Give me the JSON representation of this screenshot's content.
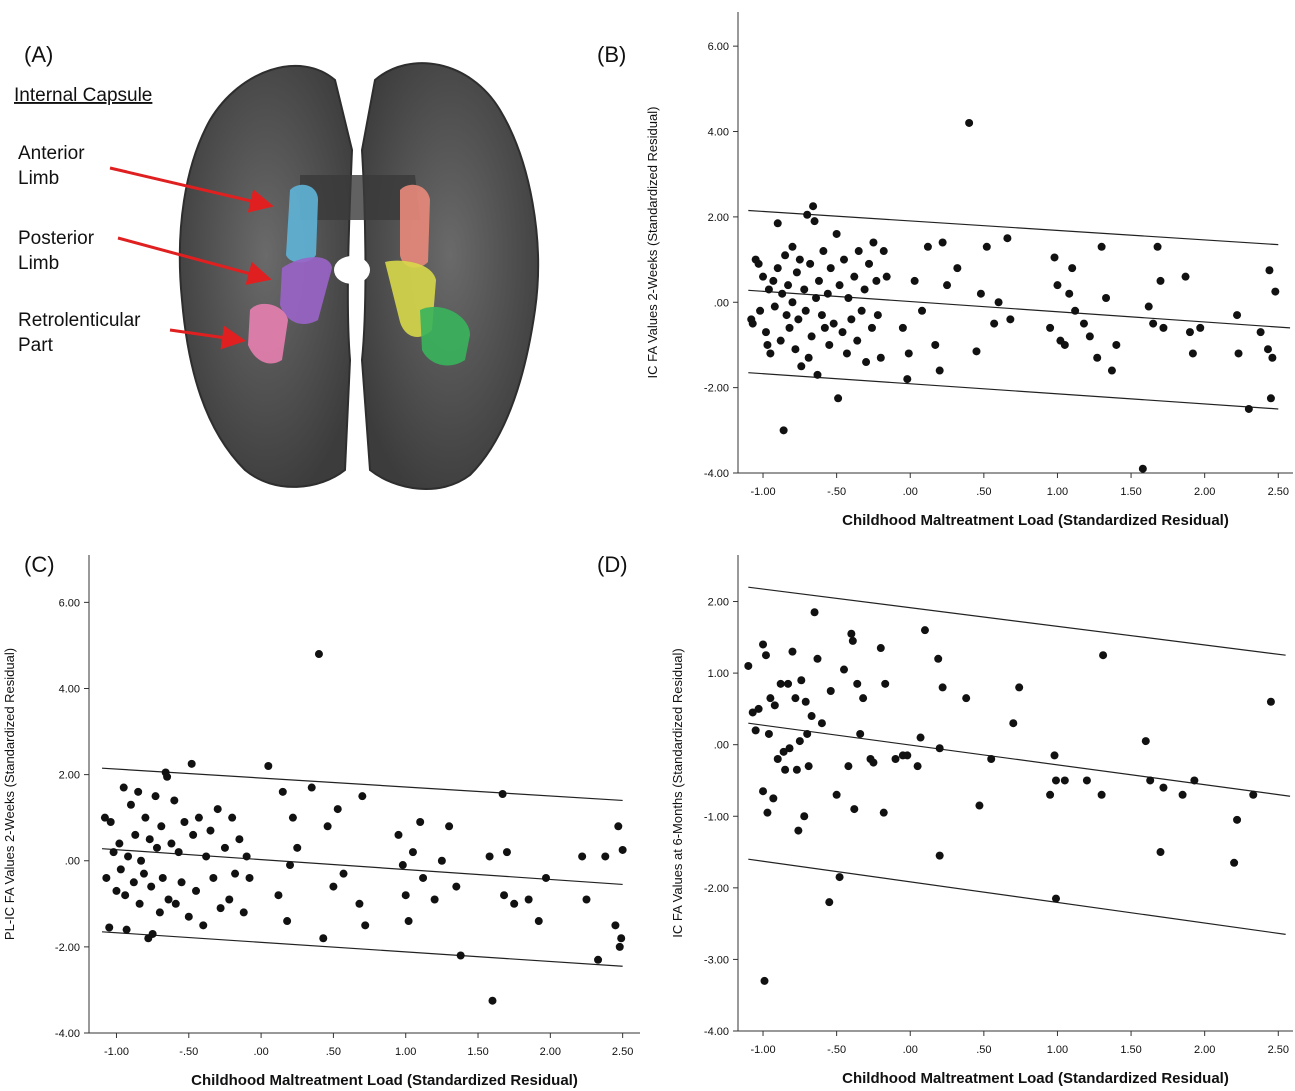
{
  "panel_a": {
    "label": "(A)",
    "heading": "Internal Capsule",
    "annotations": [
      [
        "Anterior",
        "Limb"
      ],
      [
        "Posterior",
        "Limb"
      ],
      [
        "Retrolenticular",
        "Part"
      ]
    ]
  },
  "chart_data": [
    {
      "type": "scatter",
      "panel_label": "(B)",
      "x_label": "Childhood Maltreatment Load (Standardized Residual)",
      "y_label": "IC FA Values 2-Weeks (Standardized Residual)",
      "color": "#111111",
      "xlim": [
        -1.17,
        2.6
      ],
      "ylim": [
        -4,
        6.8
      ],
      "xticks": [
        {
          "value": -1,
          "label": "-1.00"
        },
        {
          "value": -0.5,
          "label": "-.50"
        },
        {
          "value": 0,
          "label": ".00"
        },
        {
          "value": 0.5,
          "label": ".50"
        },
        {
          "value": 1,
          "label": "1.00"
        },
        {
          "value": 1.5,
          "label": "1.50"
        },
        {
          "value": 2,
          "label": "2.00"
        },
        {
          "value": 2.5,
          "label": "2.50"
        }
      ],
      "yticks": [
        {
          "value": 6,
          "label": "6.00"
        },
        {
          "value": 4,
          "label": "4.00"
        },
        {
          "value": 2,
          "label": "2.00"
        },
        {
          "value": 0,
          "label": ".00"
        },
        {
          "value": -2,
          "label": "-2.00"
        },
        {
          "value": -4,
          "label": "-4.00"
        }
      ],
      "fit_lines": [
        {
          "x": [
            -1.1,
            2.5
          ],
          "values": [
            2.15,
            1.35
          ]
        },
        {
          "x": [
            -1.1,
            2.58
          ],
          "values": [
            0.28,
            -0.6
          ]
        },
        {
          "x": [
            -1.1,
            2.5
          ],
          "values": [
            -1.65,
            -2.5
          ]
        }
      ],
      "x": [
        -1.08,
        -1.07,
        -1.05,
        -1.03,
        -1.02,
        -1.0,
        -0.98,
        -0.97,
        -0.96,
        -0.95,
        -0.93,
        -0.92,
        -0.9,
        -0.9,
        -0.88,
        -0.87,
        -0.86,
        -0.85,
        -0.84,
        -0.83,
        -0.82,
        -0.8,
        -0.8,
        -0.78,
        -0.77,
        -0.76,
        -0.75,
        -0.74,
        -0.72,
        -0.71,
        -0.7,
        -0.69,
        -0.68,
        -0.67,
        -0.66,
        -0.65,
        -0.64,
        -0.63,
        -0.62,
        -0.6,
        -0.59,
        -0.58,
        -0.56,
        -0.55,
        -0.54,
        -0.52,
        -0.5,
        -0.49,
        -0.48,
        -0.46,
        -0.45,
        -0.43,
        -0.42,
        -0.4,
        -0.38,
        -0.36,
        -0.35,
        -0.33,
        -0.31,
        -0.3,
        -0.28,
        -0.26,
        -0.25,
        -0.23,
        -0.22,
        -0.2,
        -0.18,
        -0.16,
        -0.05,
        -0.02,
        -0.01,
        0.03,
        0.08,
        0.12,
        0.17,
        0.2,
        0.22,
        0.25,
        0.32,
        0.4,
        0.45,
        0.48,
        0.52,
        0.57,
        0.6,
        0.66,
        0.68,
        0.95,
        0.98,
        1.0,
        1.02,
        1.05,
        1.08,
        1.1,
        1.12,
        1.18,
        1.22,
        1.27,
        1.3,
        1.33,
        1.37,
        1.4,
        1.58,
        1.62,
        1.65,
        1.68,
        1.7,
        1.72,
        1.87,
        1.9,
        1.92,
        1.97,
        2.22,
        2.23,
        2.3,
        2.38,
        2.43,
        2.44,
        2.45,
        2.46,
        2.48
      ],
      "values": [
        -0.4,
        -0.5,
        1.0,
        0.9,
        -0.2,
        0.6,
        -0.7,
        -1.0,
        0.3,
        -1.2,
        0.5,
        -0.1,
        1.85,
        0.8,
        -0.9,
        0.2,
        -3.0,
        1.1,
        -0.3,
        0.4,
        -0.6,
        1.3,
        0.0,
        -1.1,
        0.7,
        -0.4,
        1.0,
        -1.5,
        0.3,
        -0.2,
        2.05,
        -1.3,
        0.9,
        -0.8,
        2.25,
        1.9,
        0.1,
        -1.7,
        0.5,
        -0.3,
        1.2,
        -0.6,
        0.2,
        -1.0,
        0.8,
        -0.5,
        1.6,
        -2.25,
        0.4,
        -0.7,
        1.0,
        -1.2,
        0.1,
        -0.4,
        0.6,
        -0.9,
        1.2,
        -0.2,
        0.3,
        -1.4,
        0.9,
        -0.6,
        1.4,
        0.5,
        -0.3,
        -1.3,
        1.2,
        0.6,
        -0.6,
        -1.8,
        -1.2,
        0.5,
        -0.2,
        1.3,
        -1.0,
        -1.6,
        1.4,
        0.4,
        0.8,
        4.2,
        -1.15,
        0.2,
        1.3,
        -0.5,
        0.0,
        1.5,
        -0.4,
        -0.6,
        1.05,
        0.4,
        -0.9,
        -1.0,
        0.2,
        0.8,
        -0.2,
        -0.5,
        -0.8,
        -1.3,
        1.3,
        0.1,
        -1.6,
        -1.0,
        -3.9,
        -0.1,
        -0.5,
        1.3,
        0.5,
        -0.6,
        0.6,
        -0.7,
        -1.2,
        -0.6,
        -0.3,
        -1.2,
        -2.5,
        -0.7,
        -1.1,
        0.75,
        -2.25,
        -1.3,
        0.25
      ]
    },
    {
      "type": "scatter",
      "panel_label": "(C)",
      "x_label": "Childhood Maltreatment Load (Standardized Residual)",
      "y_label": "PL-IC FA Values 2-Weeks (Standardized Residual)",
      "color": "#111111",
      "xlim": [
        -1.19,
        2.62
      ],
      "ylim": [
        -4,
        7.1
      ],
      "xticks": [
        {
          "value": -1,
          "label": "-1.00"
        },
        {
          "value": -0.5,
          "label": "-.50"
        },
        {
          "value": 0,
          "label": ".00"
        },
        {
          "value": 0.5,
          "label": ".50"
        },
        {
          "value": 1,
          "label": "1.00"
        },
        {
          "value": 1.5,
          "label": "1.50"
        },
        {
          "value": 2,
          "label": "2.00"
        },
        {
          "value": 2.5,
          "label": "2.50"
        }
      ],
      "yticks": [
        {
          "value": 6,
          "label": "6.00"
        },
        {
          "value": 4,
          "label": "4.00"
        },
        {
          "value": 2,
          "label": "2.00"
        },
        {
          "value": 0,
          "label": ".00"
        },
        {
          "value": -2,
          "label": "-2.00"
        },
        {
          "value": -4,
          "label": "-4.00"
        }
      ],
      "fit_lines": [
        {
          "x": [
            -1.1,
            2.5
          ],
          "values": [
            2.15,
            1.4
          ]
        },
        {
          "x": [
            -1.1,
            2.5
          ],
          "values": [
            0.28,
            -0.55
          ]
        },
        {
          "x": [
            -1.1,
            2.5
          ],
          "values": [
            -1.65,
            -2.45
          ]
        }
      ],
      "x": [
        -1.08,
        -1.07,
        -1.05,
        -1.04,
        -1.02,
        -1.0,
        -0.98,
        -0.97,
        -0.95,
        -0.94,
        -0.93,
        -0.92,
        -0.9,
        -0.88,
        -0.87,
        -0.85,
        -0.84,
        -0.83,
        -0.81,
        -0.8,
        -0.78,
        -0.77,
        -0.76,
        -0.75,
        -0.73,
        -0.72,
        -0.7,
        -0.69,
        -0.68,
        -0.66,
        -0.65,
        -0.64,
        -0.62,
        -0.6,
        -0.59,
        -0.57,
        -0.55,
        -0.53,
        -0.5,
        -0.48,
        -0.47,
        -0.45,
        -0.43,
        -0.4,
        -0.38,
        -0.35,
        -0.33,
        -0.3,
        -0.28,
        -0.25,
        -0.22,
        -0.2,
        -0.18,
        -0.15,
        -0.12,
        -0.1,
        -0.08,
        0.05,
        0.12,
        0.15,
        0.18,
        0.2,
        0.22,
        0.25,
        0.35,
        0.4,
        0.43,
        0.46,
        0.5,
        0.53,
        0.57,
        0.68,
        0.7,
        0.72,
        0.95,
        0.98,
        1.0,
        1.02,
        1.05,
        1.1,
        1.12,
        1.2,
        1.25,
        1.3,
        1.35,
        1.38,
        1.58,
        1.6,
        1.67,
        1.68,
        1.7,
        1.75,
        1.85,
        1.92,
        1.97,
        2.22,
        2.25,
        2.33,
        2.38,
        2.45,
        2.47,
        2.48,
        2.49,
        2.5
      ],
      "values": [
        1.0,
        -0.4,
        -1.55,
        0.9,
        0.2,
        -0.7,
        0.4,
        -0.2,
        1.7,
        -0.8,
        -1.6,
        0.1,
        1.3,
        -0.5,
        0.6,
        1.6,
        -1.0,
        0.0,
        -0.3,
        1.0,
        -1.8,
        0.5,
        -0.6,
        -1.7,
        1.5,
        0.3,
        -1.2,
        0.8,
        -0.4,
        2.05,
        1.95,
        -0.9,
        0.4,
        1.4,
        -1.0,
        0.2,
        -0.5,
        0.9,
        -1.3,
        2.25,
        0.6,
        -0.7,
        1.0,
        -1.5,
        0.1,
        0.7,
        -0.4,
        1.2,
        -1.1,
        0.3,
        -0.9,
        1.0,
        -0.3,
        0.5,
        -1.2,
        0.1,
        -0.4,
        2.2,
        -0.8,
        1.6,
        -1.4,
        -0.1,
        1.0,
        0.3,
        1.7,
        4.8,
        -1.8,
        0.8,
        -0.6,
        1.2,
        -0.3,
        -1.0,
        1.5,
        -1.5,
        0.6,
        -0.1,
        -0.8,
        -1.4,
        0.2,
        0.9,
        -0.4,
        -0.9,
        0.0,
        0.8,
        -0.6,
        -2.2,
        0.1,
        -3.25,
        1.55,
        -0.8,
        0.2,
        -1.0,
        -0.9,
        -1.4,
        -0.4,
        0.1,
        -0.9,
        -2.3,
        0.1,
        -1.5,
        0.8,
        -2.0,
        -1.8,
        0.25
      ]
    },
    {
      "type": "scatter",
      "panel_label": "(D)",
      "x_label": "Childhood Maltreatment Load (Standardized Residual)",
      "y_label": "IC FA Values at 6-Months (Standardized Residual)",
      "color": "#111111",
      "xlim": [
        -1.17,
        2.6
      ],
      "ylim": [
        -4,
        2.65
      ],
      "xticks": [
        {
          "value": -1,
          "label": "-1.00"
        },
        {
          "value": -0.5,
          "label": "-.50"
        },
        {
          "value": 0,
          "label": ".00"
        },
        {
          "value": 0.5,
          "label": ".50"
        },
        {
          "value": 1,
          "label": "1.00"
        },
        {
          "value": 1.5,
          "label": "1.50"
        },
        {
          "value": 2,
          "label": "2.00"
        },
        {
          "value": 2.5,
          "label": "2.50"
        }
      ],
      "yticks": [
        {
          "value": 2,
          "label": "2.00"
        },
        {
          "value": 1,
          "label": "1.00"
        },
        {
          "value": 0,
          "label": ".00"
        },
        {
          "value": -1,
          "label": "-1.00"
        },
        {
          "value": -2,
          "label": "-2.00"
        },
        {
          "value": -3,
          "label": "-3.00"
        },
        {
          "value": -4,
          "label": "-4.00"
        }
      ],
      "fit_lines": [
        {
          "x": [
            -1.1,
            2.55
          ],
          "values": [
            2.2,
            1.25
          ]
        },
        {
          "x": [
            -1.1,
            2.58
          ],
          "values": [
            0.3,
            -0.72
          ]
        },
        {
          "x": [
            -1.1,
            2.55
          ],
          "values": [
            -1.6,
            -2.65
          ]
        }
      ],
      "x": [
        -1.1,
        -1.07,
        -1.05,
        -1.03,
        -1.0,
        -1.0,
        -0.99,
        -0.98,
        -0.97,
        -0.96,
        -0.95,
        -0.93,
        -0.92,
        -0.9,
        -0.88,
        -0.86,
        -0.85,
        -0.83,
        -0.82,
        -0.8,
        -0.78,
        -0.77,
        -0.76,
        -0.75,
        -0.74,
        -0.72,
        -0.71,
        -0.7,
        -0.69,
        -0.67,
        -0.65,
        -0.63,
        -0.6,
        -0.55,
        -0.54,
        -0.5,
        -0.48,
        -0.45,
        -0.42,
        -0.4,
        -0.39,
        -0.38,
        -0.36,
        -0.34,
        -0.32,
        -0.27,
        -0.25,
        -0.2,
        -0.18,
        -0.17,
        -0.1,
        -0.05,
        -0.02,
        0.05,
        0.07,
        0.1,
        0.19,
        0.2,
        0.2,
        0.22,
        0.38,
        0.47,
        0.55,
        0.7,
        0.74,
        0.95,
        0.98,
        0.99,
        0.99,
        1.05,
        1.2,
        1.3,
        1.31,
        1.6,
        1.63,
        1.7,
        1.72,
        1.85,
        1.93,
        2.2,
        2.22,
        2.33,
        2.45
      ],
      "values": [
        1.1,
        0.45,
        0.2,
        0.5,
        -0.65,
        1.4,
        -3.3,
        1.25,
        -0.95,
        0.15,
        0.65,
        -0.75,
        0.55,
        -0.2,
        0.85,
        -0.1,
        -0.35,
        0.85,
        -0.05,
        1.3,
        0.65,
        -0.35,
        -1.2,
        0.05,
        0.9,
        -1.0,
        0.6,
        0.15,
        -0.3,
        0.4,
        1.85,
        1.2,
        0.3,
        -2.2,
        0.75,
        -0.7,
        -1.85,
        1.05,
        -0.3,
        1.55,
        1.45,
        -0.9,
        0.85,
        0.15,
        0.65,
        -0.2,
        -0.25,
        1.35,
        -0.95,
        0.85,
        -0.2,
        -0.15,
        -0.15,
        -0.3,
        0.1,
        1.6,
        1.2,
        -0.05,
        -1.55,
        0.8,
        0.65,
        -0.85,
        -0.2,
        0.3,
        0.8,
        -0.7,
        -0.15,
        -0.5,
        -2.15,
        -0.5,
        -0.5,
        -0.7,
        1.25,
        0.05,
        -0.5,
        -1.5,
        -0.6,
        -0.7,
        -0.5,
        -1.65,
        -1.05,
        -0.7,
        0.6
      ]
    }
  ]
}
